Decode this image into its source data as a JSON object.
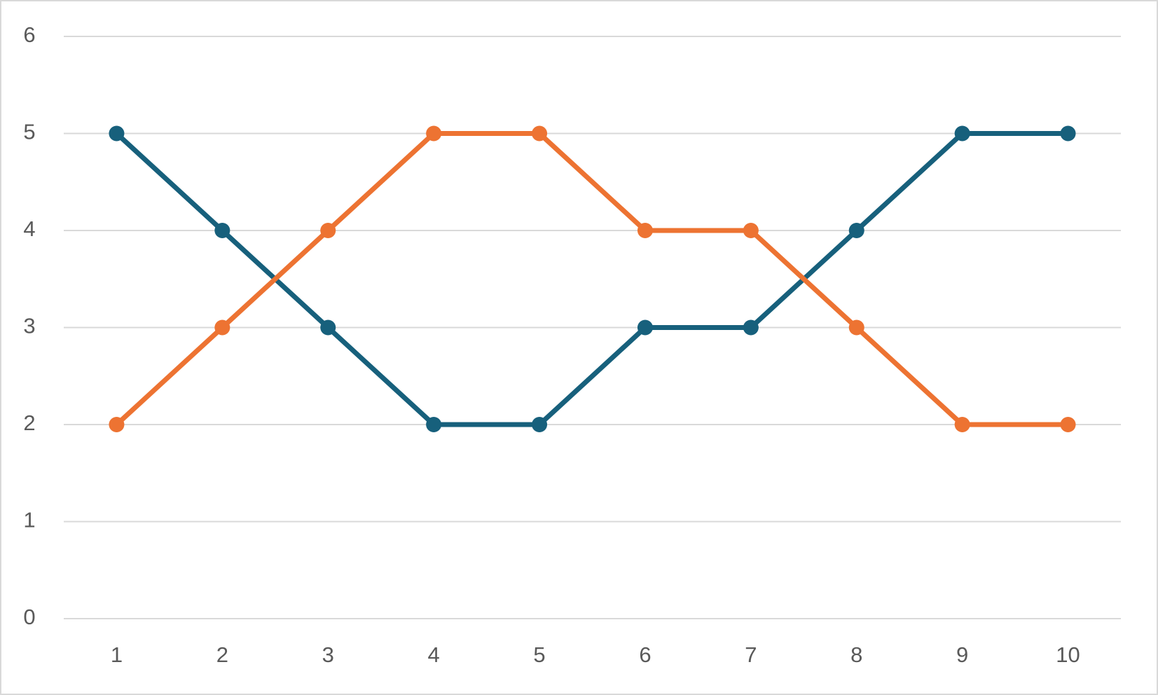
{
  "chart_data": {
    "type": "line",
    "categories": [
      "1",
      "2",
      "3",
      "4",
      "5",
      "6",
      "7",
      "8",
      "9",
      "10"
    ],
    "series": [
      {
        "color": "#17607c",
        "values": [
          5,
          4,
          3,
          2,
          2,
          3,
          3,
          4,
          5,
          5
        ]
      },
      {
        "color": "#ed7332",
        "values": [
          2,
          3,
          4,
          5,
          5,
          4,
          4,
          3,
          2,
          2
        ]
      }
    ],
    "ylim": [
      0,
      6
    ],
    "yticks": [
      0,
      1,
      2,
      3,
      4,
      5,
      6
    ],
    "grid": true
  }
}
